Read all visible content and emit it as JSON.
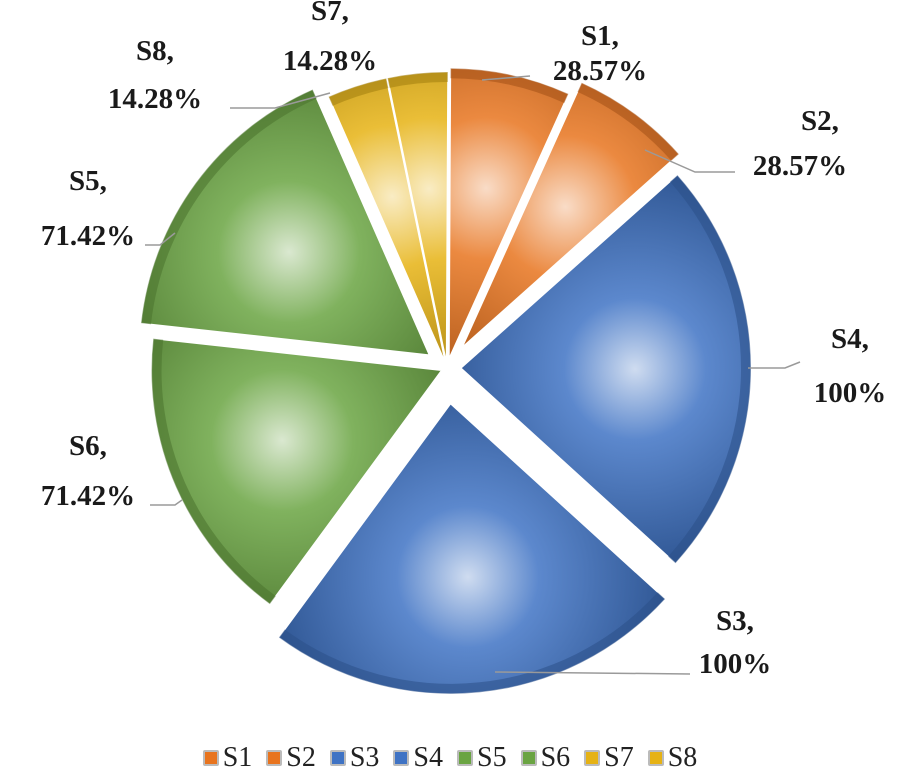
{
  "chart_data": {
    "type": "pie",
    "title": "",
    "categories": [
      "S1",
      "S2",
      "S3",
      "S4",
      "S5",
      "S6",
      "S7",
      "S8"
    ],
    "values": [
      28.57,
      28.57,
      100,
      100,
      71.42,
      71.42,
      14.28,
      14.28
    ],
    "labels": [
      {
        "name": "S1,",
        "value": "28.57%"
      },
      {
        "name": "S2,",
        "value": "28.57%"
      },
      {
        "name": "S3,",
        "value": "100%"
      },
      {
        "name": "S4,",
        "value": "100%"
      },
      {
        "name": "S5,",
        "value": "71.42%"
      },
      {
        "name": "S6,",
        "value": "71.42%"
      },
      {
        "name": "S7,",
        "value": "14.28%"
      },
      {
        "name": "S8,",
        "value": "14.28%"
      }
    ],
    "colors": [
      "#e8741e",
      "#e8741e",
      "#3f73c4",
      "#3f73c4",
      "#6aa442",
      "#6aa442",
      "#e6b214",
      "#e6b214"
    ],
    "legend": {
      "placement": "bottom",
      "items": [
        "S1",
        "S2",
        "S3",
        "S4",
        "S5",
        "S6",
        "S7",
        "S8"
      ]
    }
  }
}
